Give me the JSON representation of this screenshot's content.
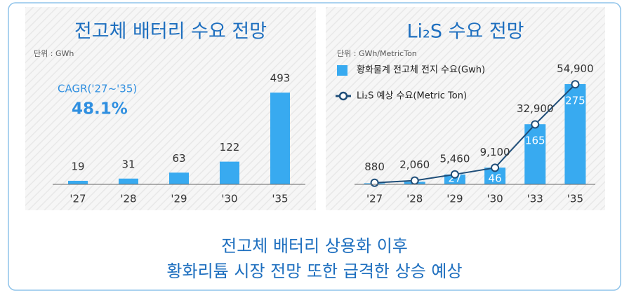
{
  "chart_data": [
    {
      "type": "bar",
      "title": "전고체 배터리 수요 전망",
      "unit_label": "단위 : GWh",
      "annotations": [
        "CAGR('27~'35)",
        "48.1%"
      ],
      "categories": [
        "'27",
        "'28",
        "'29",
        "'30",
        "'35"
      ],
      "values": [
        19,
        31,
        63,
        122,
        493
      ],
      "color": "#38aaf0",
      "ylim": [
        0,
        550
      ]
    },
    {
      "type": "combo",
      "title": "Li₂S 수요 전망",
      "unit_label": "단위 : GWh/MetricTon",
      "categories": [
        "'27",
        "'28",
        "'29",
        "'30",
        "'33",
        "'35"
      ],
      "series": [
        {
          "name": "황화물계 전고체 전지 수요(Gwh)",
          "color": "#38aaf0",
          "kind": "bar",
          "values": [
            3,
            7,
            27,
            46,
            165,
            275
          ],
          "value_labels": [
            null,
            null,
            "27",
            "46",
            "165",
            "275"
          ]
        },
        {
          "name": "Li₂S 예상 수요(Metric Ton)",
          "color": "#1f4e79",
          "kind": "line",
          "axis": "y2",
          "values": [
            880,
            2060,
            5460,
            9100,
            32900,
            54900
          ],
          "value_labels": [
            "880",
            "2,060",
            "5,460",
            "9,100",
            "32,900",
            "54,900"
          ]
        }
      ],
      "ylim": [
        0,
        300
      ],
      "y2lim": [
        0,
        60000
      ]
    }
  ],
  "caption": [
    "전고체 배터리 상용화 이후",
    "황화리튬 시장 전망 또한 급격한 상승 예상"
  ]
}
